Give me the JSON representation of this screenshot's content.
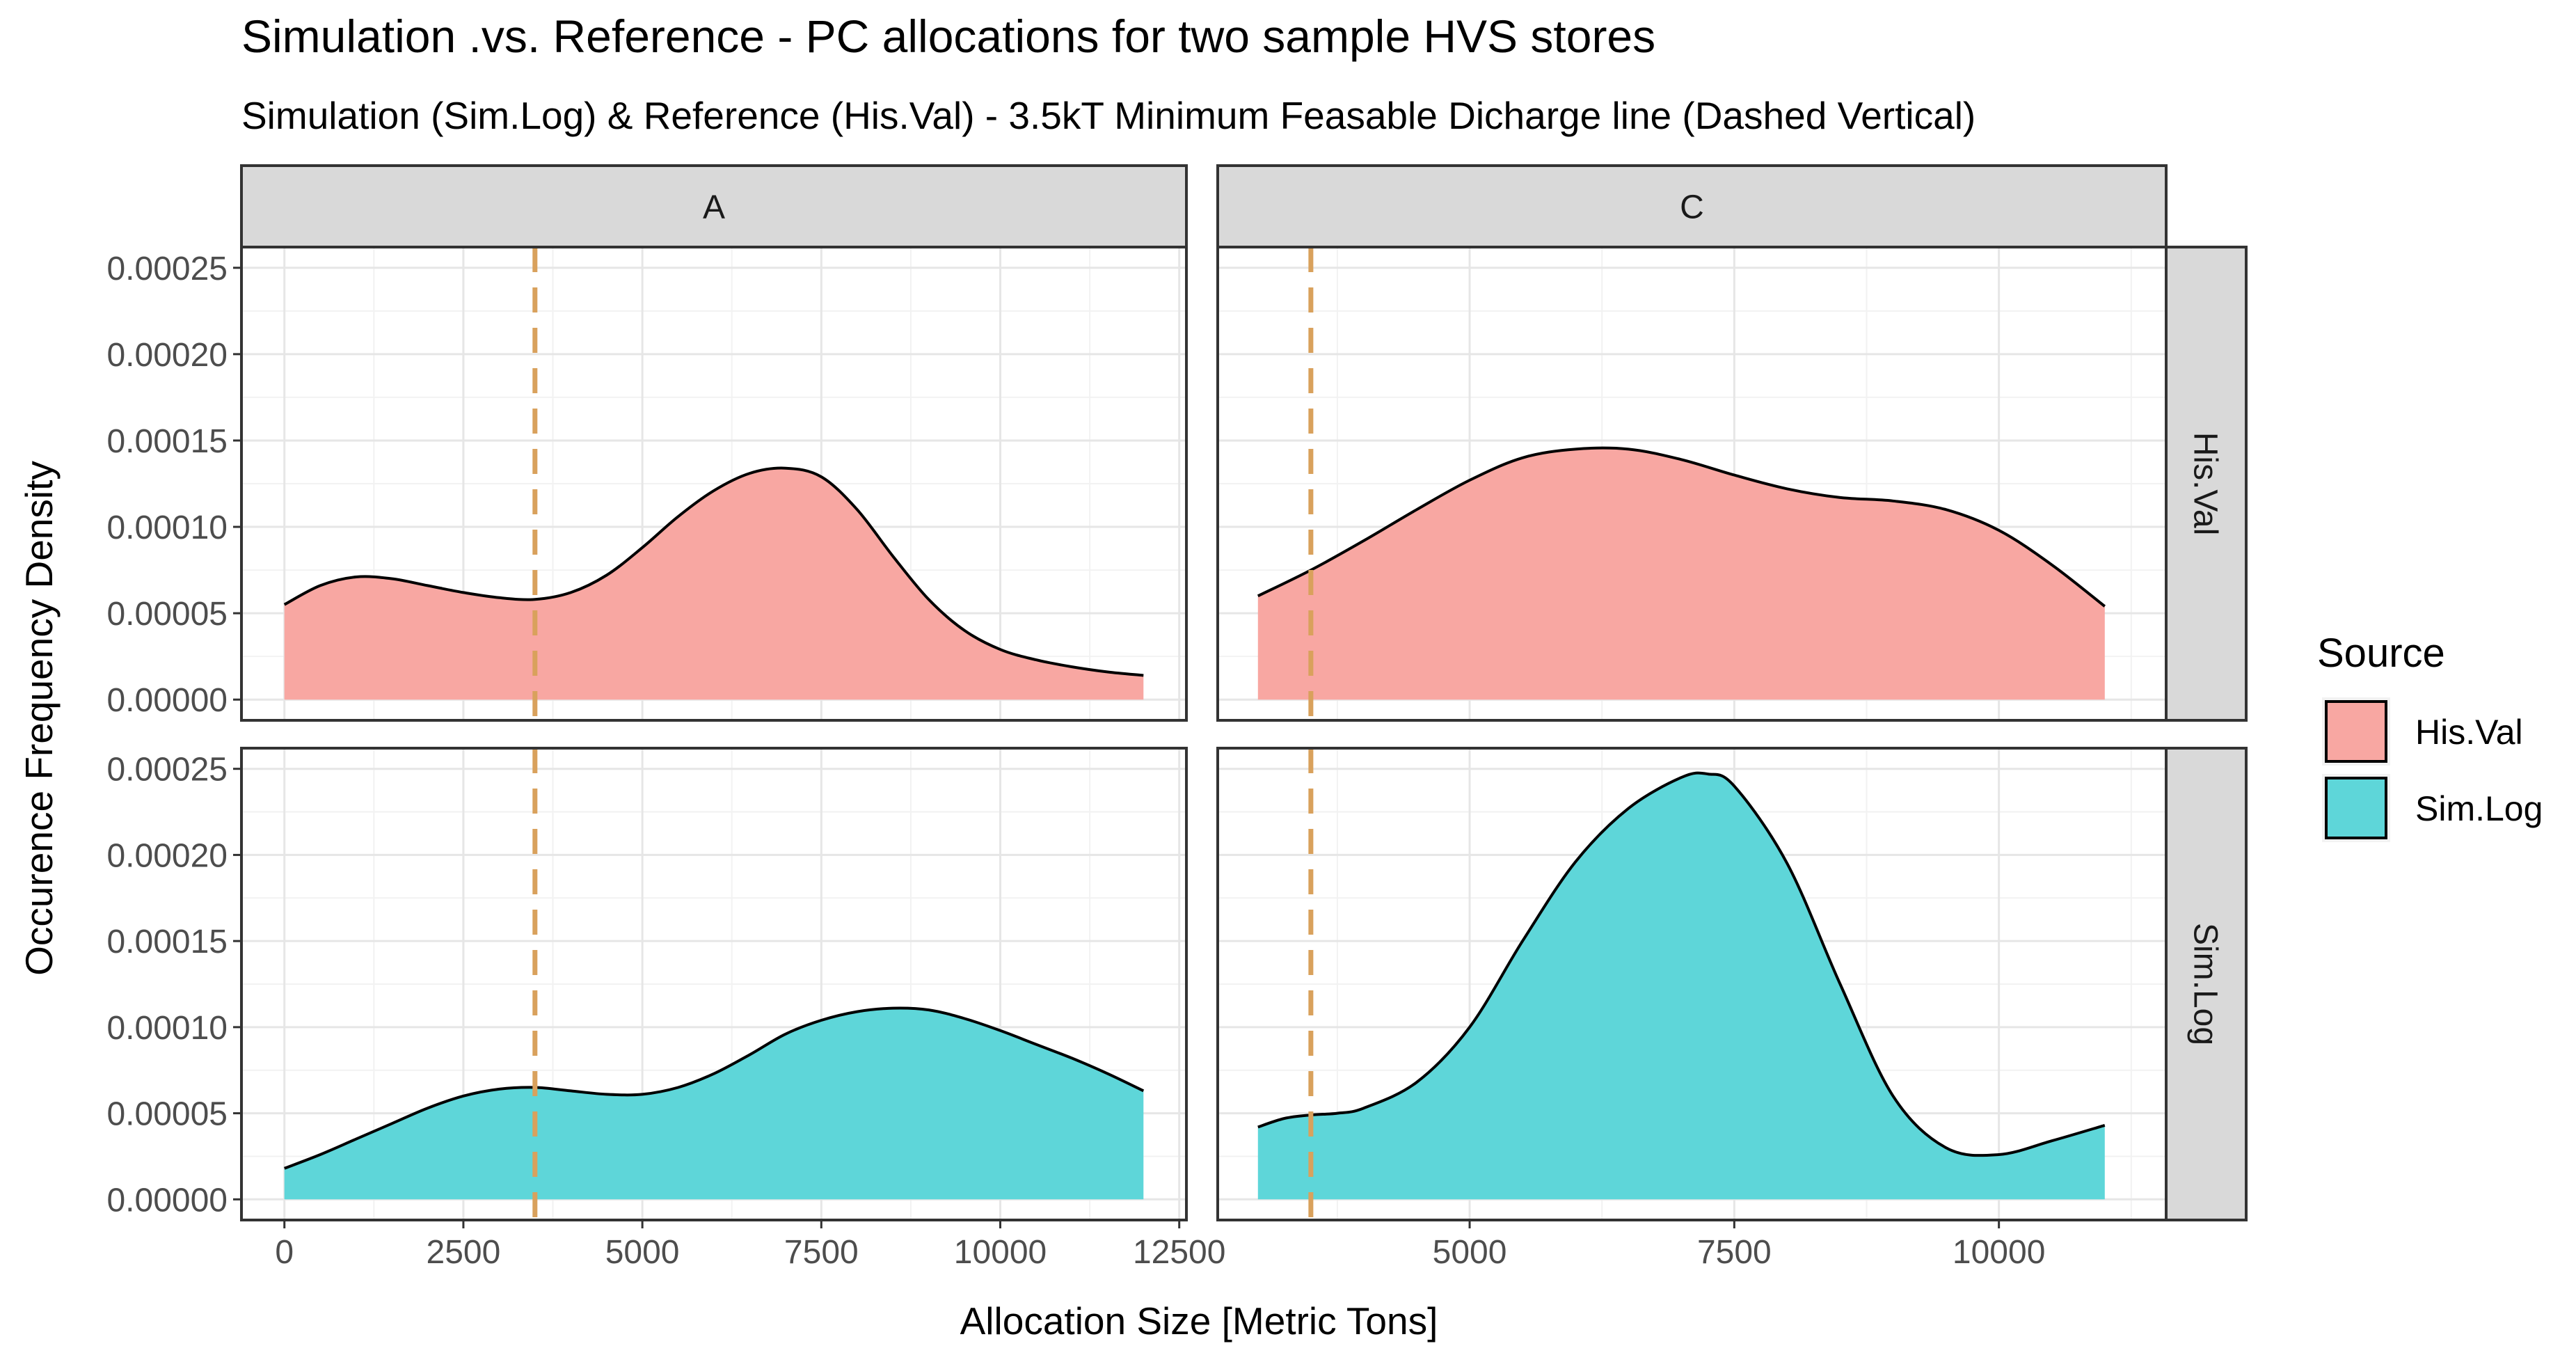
{
  "chart_data": {
    "type": "area",
    "title": "Simulation .vs. Reference  - PC allocations for two sample HVS stores",
    "subtitle": "Simulation (Sim.Log) & Reference (His.Val) - 3.5kT Minimum Feasable Dicharge line (Dashed Vertical)",
    "xlabel": "Allocation Size [Metric Tons]",
    "ylabel": "Occurence Frequency Density",
    "ylim": [
      -1.2e-05,
      0.000262
    ],
    "y_ticks": [
      0,
      5e-05,
      0.0001,
      0.00015,
      0.0002,
      0.00025
    ],
    "y_tick_labels": [
      "0.00000",
      "0.00005",
      "0.00010",
      "0.00015",
      "0.00020",
      "0.00025"
    ],
    "vline": {
      "x": 3500,
      "label": "3.5kT Minimum Feasable Discharge",
      "color": "#d9a15c"
    },
    "column_facets": [
      {
        "label": "A",
        "xlim": [
          -600,
          12600
        ],
        "x_ticks": [
          0,
          2500,
          5000,
          7500,
          10000,
          12500
        ],
        "x_tick_labels": [
          "0",
          "2500",
          "5000",
          "7500",
          "10000",
          "12500"
        ]
      },
      {
        "label": "C",
        "xlim": [
          2620,
          11580
        ],
        "x_ticks": [
          5000,
          7500,
          10000
        ],
        "x_tick_labels": [
          "5000",
          "7500",
          "10000"
        ]
      }
    ],
    "row_facets": [
      {
        "label": "His.Val",
        "color": "#f8a7a2"
      },
      {
        "label": "Sim.Log",
        "color": "#5ed6d9"
      }
    ],
    "series": [
      {
        "name": "His.Val",
        "facet_col": "A",
        "x": [
          0,
          500,
          1000,
          1500,
          2000,
          2500,
          3000,
          3500,
          4000,
          4500,
          5000,
          5500,
          6000,
          6500,
          7000,
          7500,
          8000,
          8500,
          9000,
          9500,
          10000,
          10500,
          11000,
          11500,
          12000
        ],
        "y": [
          5.5e-05,
          6.6e-05,
          7.1e-05,
          7e-05,
          6.6e-05,
          6.2e-05,
          5.9e-05,
          5.8e-05,
          6.2e-05,
          7.2e-05,
          8.8e-05,
          0.000106,
          0.000121,
          0.000131,
          0.000134,
          0.000129,
          0.00011,
          8.3e-05,
          5.8e-05,
          4e-05,
          2.9e-05,
          2.3e-05,
          1.9e-05,
          1.6e-05,
          1.4e-05
        ]
      },
      {
        "name": "His.Val",
        "facet_col": "C",
        "x": [
          3000,
          3500,
          4000,
          4500,
          5000,
          5500,
          6000,
          6500,
          7000,
          7500,
          8000,
          8500,
          9000,
          9500,
          10000,
          10500,
          11000
        ],
        "y": [
          6e-05,
          7.5e-05,
          9.2e-05,
          0.00011,
          0.000127,
          0.00014,
          0.000145,
          0.000145,
          0.000139,
          0.00013,
          0.000122,
          0.000117,
          0.000115,
          0.00011,
          9.8e-05,
          7.8e-05,
          5.4e-05
        ]
      },
      {
        "name": "Sim.Log",
        "facet_col": "A",
        "x": [
          0,
          500,
          1000,
          1500,
          2000,
          2500,
          3000,
          3500,
          4000,
          4500,
          5000,
          5500,
          6000,
          6500,
          7000,
          7500,
          8000,
          8500,
          9000,
          9500,
          10000,
          10500,
          11000,
          11500,
          12000
        ],
        "y": [
          1.8e-05,
          2.6e-05,
          3.5e-05,
          4.4e-05,
          5.3e-05,
          6e-05,
          6.4e-05,
          6.5e-05,
          6.3e-05,
          6.1e-05,
          6.1e-05,
          6.5e-05,
          7.3e-05,
          8.4e-05,
          9.6e-05,
          0.000104,
          0.000109,
          0.000111,
          0.00011,
          0.000105,
          9.8e-05,
          9e-05,
          8.2e-05,
          7.3e-05,
          6.3e-05
        ]
      },
      {
        "name": "Sim.Log",
        "facet_col": "C",
        "x": [
          3000,
          3250,
          3500,
          3750,
          4000,
          4500,
          5000,
          5500,
          6000,
          6500,
          7000,
          7250,
          7500,
          8000,
          8500,
          9000,
          9500,
          10000,
          10500,
          11000
        ],
        "y": [
          4.2e-05,
          4.7e-05,
          4.9e-05,
          5e-05,
          5.3e-05,
          6.8e-05,
          0.0001,
          0.00015,
          0.000196,
          0.000227,
          0.000245,
          0.000247,
          0.00024,
          0.000195,
          0.000125,
          6e-05,
          3e-05,
          2.6e-05,
          3.4e-05,
          4.3e-05
        ]
      }
    ],
    "legend": {
      "title": "Source",
      "position": "right",
      "entries": [
        "His.Val",
        "Sim.Log"
      ]
    },
    "grid": true
  }
}
